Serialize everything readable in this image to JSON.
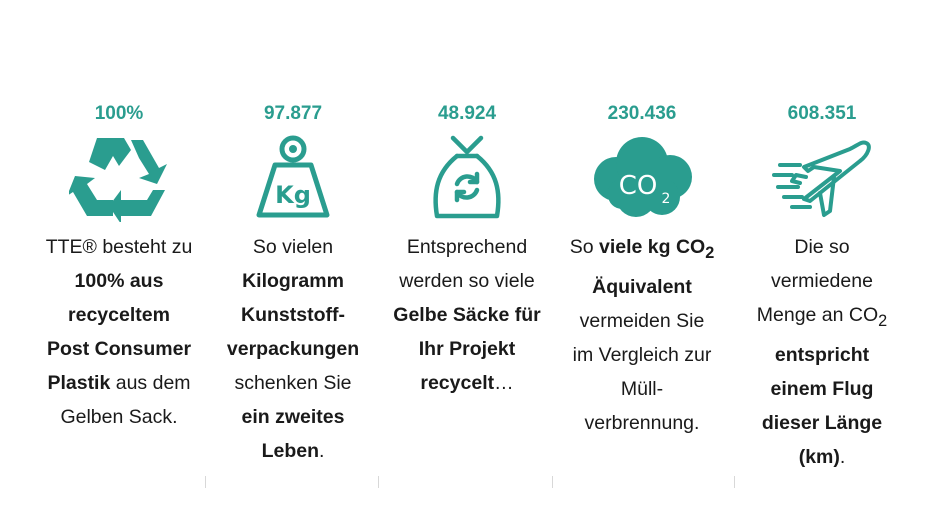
{
  "accent_color": "#2a9d8f",
  "columns": [
    {
      "stat": "100%",
      "icon": "recycle-icon",
      "lines": [
        [
          {
            "t": "TTE® besteht zu",
            "b": false
          }
        ],
        [
          {
            "t": "100% aus",
            "b": true
          }
        ],
        [
          {
            "t": "recyceltem",
            "b": true
          }
        ],
        [
          {
            "t": "Post Consumer",
            "b": true
          }
        ],
        [
          {
            "t": "Plastik",
            "b": true
          },
          {
            "t": " aus dem",
            "b": false
          }
        ],
        [
          {
            "t": "Gelben Sack.",
            "b": false
          }
        ]
      ]
    },
    {
      "stat": "97.877",
      "icon": "weight-kg-icon",
      "lines": [
        [
          {
            "t": "So vielen",
            "b": false
          }
        ],
        [
          {
            "t": "Kilogramm",
            "b": true
          }
        ],
        [
          {
            "t": "Kunststoff-",
            "b": true
          }
        ],
        [
          {
            "t": "verpackungen",
            "b": true
          }
        ],
        [
          {
            "t": "schenken Sie",
            "b": false
          }
        ],
        [
          {
            "t": "ein zweites",
            "b": true
          }
        ],
        [
          {
            "t": "Leben",
            "b": true
          },
          {
            "t": ".",
            "b": false
          }
        ]
      ]
    },
    {
      "stat": "48.924",
      "icon": "recycling-bag-icon",
      "lines": [
        [
          {
            "t": "Entsprechend",
            "b": false
          }
        ],
        [
          {
            "t": "werden so viele",
            "b": false
          }
        ],
        [
          {
            "t": "Gelbe Säcke für",
            "b": true
          }
        ],
        [
          {
            "t": "Ihr Projekt",
            "b": true
          }
        ],
        [
          {
            "t": "recycelt",
            "b": true
          },
          {
            "t": "…",
            "b": false
          }
        ]
      ]
    },
    {
      "stat": "230.436",
      "icon": "co2-cloud-icon",
      "lines": [
        [
          {
            "t": "So ",
            "b": false
          },
          {
            "t": "viele kg CO",
            "b": true
          },
          {
            "t": "2",
            "b": true,
            "sub": true
          }
        ],
        [
          {
            "t": "Äquivalent",
            "b": true
          }
        ],
        [
          {
            "t": "vermeiden Sie",
            "b": false
          }
        ],
        [
          {
            "t": "im Vergleich zur",
            "b": false
          }
        ],
        [
          {
            "t": "Müll-",
            "b": false
          }
        ],
        [
          {
            "t": "verbrennung.",
            "b": false
          }
        ]
      ]
    },
    {
      "stat": "608.351",
      "icon": "airplane-icon",
      "lines": [
        [
          {
            "t": "Die so",
            "b": false
          }
        ],
        [
          {
            "t": "vermiedene",
            "b": false
          }
        ],
        [
          {
            "t": "Menge an CO",
            "b": false
          },
          {
            "t": "2",
            "b": false,
            "sub": true
          }
        ],
        [
          {
            "t": "entspricht",
            "b": true
          }
        ],
        [
          {
            "t": "einem Flug",
            "b": true
          }
        ],
        [
          {
            "t": "dieser Länge",
            "b": true
          }
        ],
        [
          {
            "t": "(km)",
            "b": true
          },
          {
            "t": ".",
            "b": false
          }
        ]
      ]
    }
  ]
}
